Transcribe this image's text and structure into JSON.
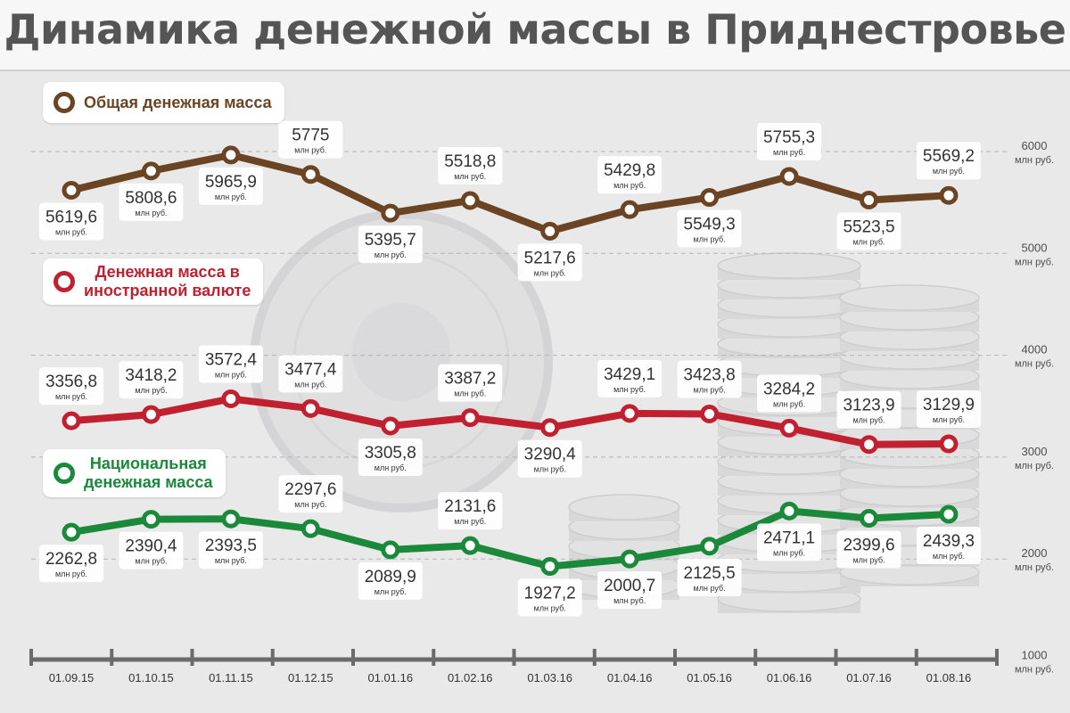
{
  "title": "Динамика денежной массы в Приднестровье",
  "colors": {
    "total": "#6b4423",
    "foreign": "#c0202f",
    "national": "#1a8a3a",
    "grid": "#b5b5b5",
    "axis": "#6b6b6b"
  },
  "legend": {
    "total": "Общая денежная масса",
    "foreign_line1": "Денежная масса в",
    "foreign_line2": "иностранной валюте",
    "national_line1": "Национальная",
    "national_line2": "денежная масса"
  },
  "chart_data": {
    "type": "line",
    "title": "Динамика денежной массы в Приднестровье",
    "categories": [
      "01.09.15",
      "01.10.15",
      "01.11.15",
      "01.12.15",
      "01.01.16",
      "01.02.16",
      "01.03.16",
      "01.04.16",
      "01.05.16",
      "01.06.16",
      "01.07.16",
      "01.08.16"
    ],
    "unit": "млн руб.",
    "ylim": [
      1000,
      6000
    ],
    "y_ticks": [
      {
        "value": 6000,
        "label": "6000"
      },
      {
        "value": 5000,
        "label": "5000"
      },
      {
        "value": 4000,
        "label": "4000"
      },
      {
        "value": 3000,
        "label": "3000"
      },
      {
        "value": 2000,
        "label": "2000"
      },
      {
        "value": 1000,
        "label": "1000"
      }
    ],
    "series": [
      {
        "key": "total",
        "name": "Общая денежная масса",
        "values": [
          5619.6,
          5808.6,
          5965.9,
          5775,
          5395.7,
          5518.8,
          5217.6,
          5429.8,
          5549.3,
          5755.3,
          5523.5,
          5569.2
        ],
        "labels": [
          "5619,6",
          "5808,6",
          "5965,9",
          "5775",
          "5395,7",
          "5518,8",
          "5217,6",
          "5429,8",
          "5549,3",
          "5755,3",
          "5523,5",
          "5569,2"
        ],
        "label_pos": [
          "below",
          "below",
          "below",
          "above",
          "below",
          "above",
          "below",
          "above",
          "below",
          "above",
          "below",
          "above"
        ]
      },
      {
        "key": "foreign",
        "name": "Денежная масса в иностранной валюте",
        "values": [
          3356.8,
          3418.2,
          3572.4,
          3477.4,
          3305.8,
          3387.2,
          3290.4,
          3429.1,
          3423.8,
          3284.2,
          3123.9,
          3129.9
        ],
        "labels": [
          "3356,8",
          "3418,2",
          "3572,4",
          "3477,4",
          "3305,8",
          "3387,2",
          "3290,4",
          "3429,1",
          "3423,8",
          "3284,2",
          "3123,9",
          "3129,9"
        ],
        "label_pos": [
          "above",
          "above",
          "above",
          "above",
          "below",
          "above",
          "below",
          "above",
          "above",
          "above",
          "above",
          "above"
        ]
      },
      {
        "key": "national",
        "name": "Национальная денежная масса",
        "values": [
          2262.8,
          2390.4,
          2393.5,
          2297.6,
          2089.9,
          2131.6,
          1927.2,
          2000.7,
          2125.5,
          2471.1,
          2399.6,
          2439.3
        ],
        "labels": [
          "2262,8",
          "2390,4",
          "2393,5",
          "2297,6",
          "2089,9",
          "2131,6",
          "1927,2",
          "2000,7",
          "2125,5",
          "2471,1",
          "2399,6",
          "2439,3"
        ],
        "label_pos": [
          "below",
          "below",
          "below",
          "above",
          "below",
          "above",
          "below",
          "below",
          "below",
          "below",
          "below",
          "below"
        ]
      }
    ]
  }
}
